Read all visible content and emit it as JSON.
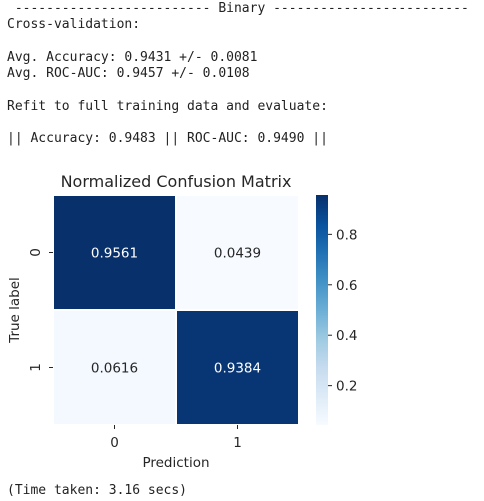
{
  "header": {
    "binary_banner": " ------------------------- Binary -------------------------",
    "cv_title": "Cross-validation:",
    "avg_accuracy": "Avg. Accuracy: 0.9431 +/- 0.0081",
    "avg_roc_auc": "Avg. ROC-AUC: 0.9457 +/- 0.0108",
    "refit_line": "Refit to full training data and evaluate:",
    "final_scores": "|| Accuracy: 0.9483 || ROC-AUC: 0.9490 ||"
  },
  "footer": {
    "time_taken": "(Time taken: 3.16 secs)"
  },
  "chart_data": {
    "type": "heatmap",
    "title": "Normalized Confusion Matrix",
    "xlabel": "Prediction",
    "ylabel": "True label",
    "x_categories": [
      "0",
      "1"
    ],
    "y_categories": [
      "0",
      "1"
    ],
    "values": [
      [
        0.9561,
        0.0439
      ],
      [
        0.0616,
        0.9384
      ]
    ],
    "value_labels": [
      [
        "0.9561",
        "0.0439"
      ],
      [
        "0.0616",
        "0.9384"
      ]
    ],
    "colormap": "Blues",
    "colorbar": {
      "ticks": [
        0.2,
        0.4,
        0.6,
        0.8
      ],
      "tick_labels": [
        "0.2",
        "0.4",
        "0.6",
        "0.8"
      ],
      "range": [
        0.0439,
        0.9561
      ]
    },
    "colors": {
      "low": "#f7fbff",
      "high": "#08306b",
      "text_on_dark": "#ffffff",
      "text_on_light": "#262626"
    }
  }
}
